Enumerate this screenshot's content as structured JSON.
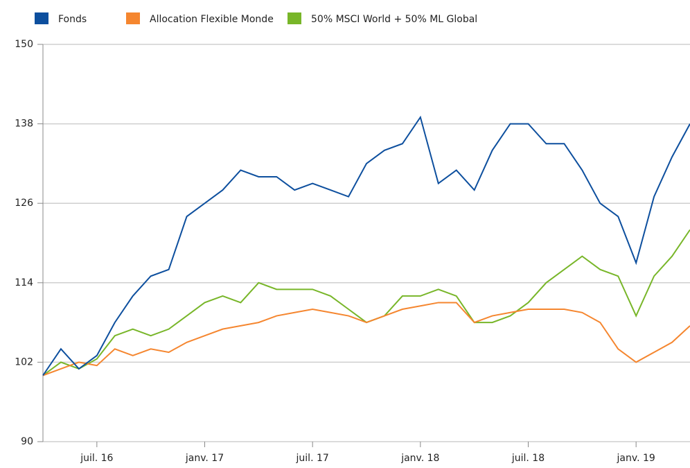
{
  "chart_data": {
    "type": "line",
    "x": [
      "2016-04",
      "2016-05",
      "2016-06",
      "2016-07",
      "2016-08",
      "2016-09",
      "2016-10",
      "2016-11",
      "2016-12",
      "2017-01",
      "2017-02",
      "2017-03",
      "2017-04",
      "2017-05",
      "2017-06",
      "2017-07",
      "2017-08",
      "2017-09",
      "2017-10",
      "2017-11",
      "2017-12",
      "2018-01",
      "2018-02",
      "2018-03",
      "2018-04",
      "2018-05",
      "2018-06",
      "2018-07",
      "2018-08",
      "2018-09",
      "2018-10",
      "2018-11",
      "2018-12",
      "2019-01",
      "2019-02",
      "2019-03",
      "2019-04"
    ],
    "series": [
      {
        "name": "Fonds",
        "color": "#0d4f9e",
        "values": [
          100,
          104,
          101,
          103,
          108,
          112,
          115,
          116,
          124,
          126,
          128,
          131,
          130,
          130,
          128,
          129,
          128,
          127,
          132,
          134,
          135,
          139,
          129,
          131,
          128,
          134,
          138,
          138,
          135,
          135,
          131,
          126,
          124,
          117,
          127,
          133,
          138
        ]
      },
      {
        "name": "Allocation Flexible Monde",
        "color": "#f5862f",
        "values": [
          100,
          101,
          102,
          101.5,
          104,
          103,
          104,
          103.5,
          105,
          106,
          107,
          107.5,
          108,
          109,
          109.5,
          110,
          109.5,
          109,
          108,
          109,
          110,
          110.5,
          111,
          111,
          108,
          109,
          109.5,
          110,
          110,
          110,
          109.5,
          108,
          104,
          102,
          103.5,
          105,
          107.5
        ]
      },
      {
        "name": "50% MSCI World + 50% ML Global",
        "color": "#78b629",
        "values": [
          100,
          102,
          101,
          102.5,
          106,
          107,
          106,
          107,
          109,
          111,
          112,
          111,
          114,
          113,
          113,
          113,
          112,
          110,
          108,
          109,
          112,
          112,
          113,
          112,
          108,
          108,
          109,
          111,
          114,
          116,
          118,
          116,
          115,
          109,
          115,
          118,
          122
        ]
      }
    ],
    "xlim": [
      "2016-04",
      "2019-04"
    ],
    "xticks": [
      {
        "value": "2016-07",
        "label": "juil. 16"
      },
      {
        "value": "2017-01",
        "label": "janv. 17"
      },
      {
        "value": "2017-07",
        "label": "juil. 17"
      },
      {
        "value": "2018-01",
        "label": "janv. 18"
      },
      {
        "value": "2018-07",
        "label": "juil. 18"
      },
      {
        "value": "2019-01",
        "label": "janv. 19"
      }
    ],
    "ylim": [
      90,
      150
    ],
    "yticks": [
      90,
      102,
      114,
      126,
      138,
      150
    ],
    "grid": true
  }
}
